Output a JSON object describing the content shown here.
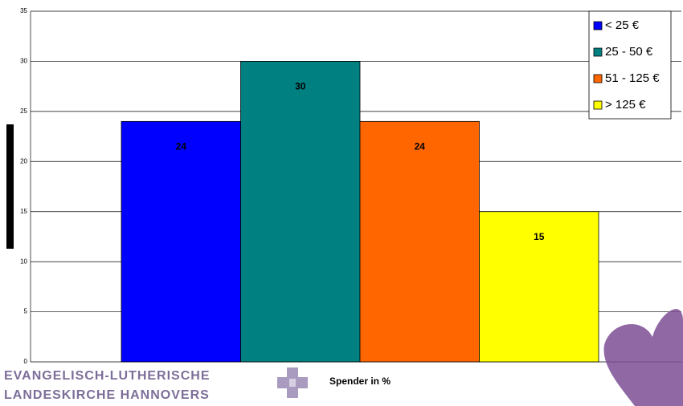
{
  "chart_data": {
    "type": "bar",
    "x_label": "Spender in %",
    "series": [
      {
        "name": "< 25 €",
        "color": "#0000ff",
        "values": [
          24
        ]
      },
      {
        "name": "25 - 50 €",
        "color": "#008080",
        "values": [
          30
        ]
      },
      {
        "name": "51 - 125 €",
        "color": "#ff6600",
        "values": [
          24
        ]
      },
      {
        "name": "> 125 €",
        "color": "#ffff00",
        "values": [
          15
        ]
      }
    ],
    "ylim": [
      0,
      35
    ],
    "yticks": [
      0,
      5,
      10,
      15,
      20,
      25,
      30,
      35
    ],
    "grid": true,
    "legend": "top-right"
  },
  "logo": {
    "line1": "EVANGELISCH-LUTHERISCHE",
    "line2": "LANDESKIRCHE HANNOVERS"
  }
}
